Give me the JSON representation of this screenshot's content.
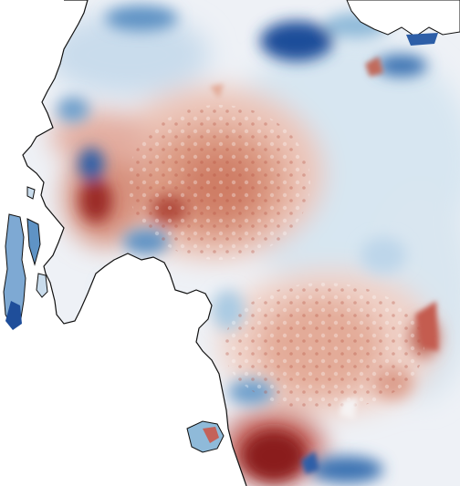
{
  "map": {
    "kind": "diverging anomaly field over a coastline",
    "colormap": {
      "negative": "#1f4e9a",
      "negative_light": "#8fbad9",
      "neutral": "#f3eeee",
      "positive_light": "#e3a592",
      "positive": "#8a1c1c"
    },
    "land_color": "#ffffff",
    "coast_color": "#111111",
    "background_color": "#f2eeee"
  }
}
